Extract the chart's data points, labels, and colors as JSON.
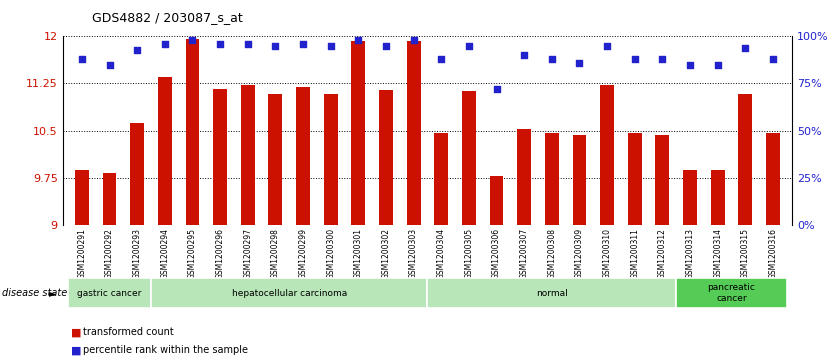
{
  "title": "GDS4882 / 203087_s_at",
  "samples": [
    "GSM1200291",
    "GSM1200292",
    "GSM1200293",
    "GSM1200294",
    "GSM1200295",
    "GSM1200296",
    "GSM1200297",
    "GSM1200298",
    "GSM1200299",
    "GSM1200300",
    "GSM1200301",
    "GSM1200302",
    "GSM1200303",
    "GSM1200304",
    "GSM1200305",
    "GSM1200306",
    "GSM1200307",
    "GSM1200308",
    "GSM1200309",
    "GSM1200310",
    "GSM1200311",
    "GSM1200312",
    "GSM1200313",
    "GSM1200314",
    "GSM1200315",
    "GSM1200316"
  ],
  "transformed_count": [
    9.87,
    9.83,
    10.63,
    11.35,
    11.95,
    11.17,
    11.22,
    11.08,
    11.2,
    11.08,
    11.93,
    11.15,
    11.93,
    10.47,
    11.13,
    9.78,
    10.52,
    10.47,
    10.43,
    11.22,
    10.47,
    10.43,
    9.87,
    9.87,
    11.08,
    10.47
  ],
  "percentile_rank": [
    88,
    85,
    93,
    96,
    98,
    96,
    96,
    95,
    96,
    95,
    98,
    95,
    98,
    88,
    95,
    72,
    90,
    88,
    86,
    95,
    88,
    88,
    85,
    85,
    94,
    88
  ],
  "bar_color": "#cc1100",
  "dot_color": "#2222cc",
  "ylim_left": [
    9.0,
    12.0
  ],
  "ylim_right": [
    0,
    100
  ],
  "yticks_left": [
    9.0,
    9.75,
    10.5,
    11.25,
    12.0
  ],
  "ytick_labels_left": [
    "9",
    "9.75",
    "10.5",
    "11.25",
    "12"
  ],
  "yticks_right": [
    0,
    25,
    50,
    75,
    100
  ],
  "ytick_labels_right": [
    "0%",
    "25%",
    "50%",
    "75%",
    "100%"
  ],
  "group_defs": [
    {
      "label": "gastric cancer",
      "start": 0,
      "end": 2,
      "color": "#b8e6b8"
    },
    {
      "label": "hepatocellular carcinoma",
      "start": 3,
      "end": 12,
      "color": "#b8e6b8"
    },
    {
      "label": "normal",
      "start": 13,
      "end": 21,
      "color": "#b8e6b8"
    },
    {
      "label": "pancreatic\ncancer",
      "start": 22,
      "end": 25,
      "color": "#55cc55"
    }
  ],
  "disease_state_label": "disease state",
  "background_color": "#ffffff",
  "tick_bg_color": "#cccccc",
  "bar_color_legend": "#cc1100",
  "dot_color_legend": "#2222cc"
}
